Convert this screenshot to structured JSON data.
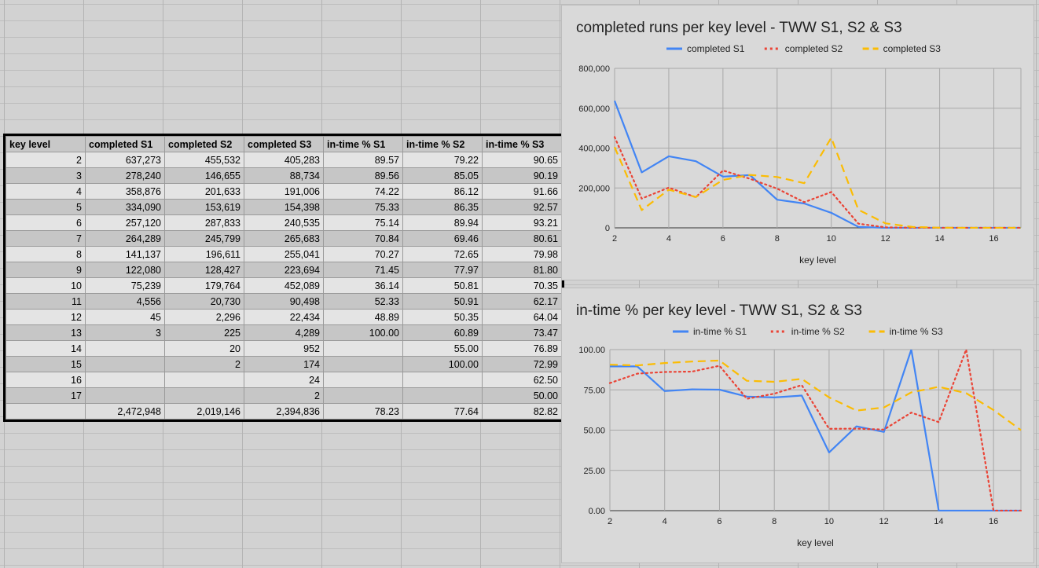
{
  "table": {
    "headers": [
      "key level",
      "completed S1",
      "completed S2",
      "completed S3",
      "in-time % S1",
      "in-time % S2",
      "in-time % S3"
    ],
    "rows": [
      [
        "2",
        "637,273",
        "455,532",
        "405,283",
        "89.57",
        "79.22",
        "90.65"
      ],
      [
        "3",
        "278,240",
        "146,655",
        "88,734",
        "89.56",
        "85.05",
        "90.19"
      ],
      [
        "4",
        "358,876",
        "201,633",
        "191,006",
        "74.22",
        "86.12",
        "91.66"
      ],
      [
        "5",
        "334,090",
        "153,619",
        "154,398",
        "75.33",
        "86.35",
        "92.57"
      ],
      [
        "6",
        "257,120",
        "287,833",
        "240,535",
        "75.14",
        "89.94",
        "93.21"
      ],
      [
        "7",
        "264,289",
        "245,799",
        "265,683",
        "70.84",
        "69.46",
        "80.61"
      ],
      [
        "8",
        "141,137",
        "196,611",
        "255,041",
        "70.27",
        "72.65",
        "79.98"
      ],
      [
        "9",
        "122,080",
        "128,427",
        "223,694",
        "71.45",
        "77.97",
        "81.80"
      ],
      [
        "10",
        "75,239",
        "179,764",
        "452,089",
        "36.14",
        "50.81",
        "70.35"
      ],
      [
        "11",
        "4,556",
        "20,730",
        "90,498",
        "52.33",
        "50.91",
        "62.17"
      ],
      [
        "12",
        "45",
        "2,296",
        "22,434",
        "48.89",
        "50.35",
        "64.04"
      ],
      [
        "13",
        "3",
        "225",
        "4,289",
        "100.00",
        "60.89",
        "73.47"
      ],
      [
        "14",
        "",
        "20",
        "952",
        "",
        "55.00",
        "76.89"
      ],
      [
        "15",
        "",
        "2",
        "174",
        "",
        "100.00",
        "72.99"
      ],
      [
        "16",
        "",
        "",
        "24",
        "",
        "",
        "62.50"
      ],
      [
        "17",
        "",
        "",
        "2",
        "",
        "",
        "50.00"
      ]
    ],
    "totals": [
      "",
      "2,472,948",
      "2,019,146",
      "2,394,836",
      "78.23",
      "77.64",
      "82.82"
    ]
  },
  "chart_data": [
    {
      "type": "line",
      "title": "completed runs per key level - TWW S1, S2 & S3",
      "xlabel": "key level",
      "ylabel": "",
      "x": [
        2,
        3,
        4,
        5,
        6,
        7,
        8,
        9,
        10,
        11,
        12,
        13,
        14,
        15,
        16,
        17
      ],
      "xlim": [
        2,
        17
      ],
      "ylim": [
        0,
        800000
      ],
      "xticks": [
        2,
        4,
        6,
        8,
        10,
        12,
        14,
        16
      ],
      "yticks": [
        0,
        200000,
        400000,
        600000,
        800000
      ],
      "ytick_labels": [
        "0",
        "200,000",
        "400,000",
        "600,000",
        "800,000"
      ],
      "grid": true,
      "legend_position": "top",
      "series": [
        {
          "name": "completed S1",
          "color": "#4285f4",
          "dash": "solid",
          "values": [
            637273,
            278240,
            358876,
            334090,
            257120,
            264289,
            141137,
            122080,
            75239,
            4556,
            45,
            3,
            0,
            0,
            0,
            0
          ]
        },
        {
          "name": "completed S2",
          "color": "#ea4335",
          "dash": "dotted",
          "values": [
            455532,
            146655,
            201633,
            153619,
            287833,
            245799,
            196611,
            128427,
            179764,
            20730,
            2296,
            225,
            20,
            2,
            0,
            0
          ]
        },
        {
          "name": "completed S3",
          "color": "#fbbc04",
          "dash": "dashed",
          "values": [
            405283,
            88734,
            191006,
            154398,
            240535,
            265683,
            255041,
            223694,
            452089,
            90498,
            22434,
            4289,
            952,
            174,
            24,
            2
          ]
        }
      ]
    },
    {
      "type": "line",
      "title": "in-time % per key level - TWW S1, S2 & S3",
      "xlabel": "key level",
      "ylabel": "",
      "x": [
        2,
        3,
        4,
        5,
        6,
        7,
        8,
        9,
        10,
        11,
        12,
        13,
        14,
        15,
        16,
        17
      ],
      "xlim": [
        2,
        17
      ],
      "ylim": [
        0,
        100
      ],
      "xticks": [
        2,
        4,
        6,
        8,
        10,
        12,
        14,
        16
      ],
      "yticks": [
        0,
        25,
        50,
        75,
        100
      ],
      "ytick_labels": [
        "0.00",
        "25.00",
        "50.00",
        "75.00",
        "100.00"
      ],
      "grid": true,
      "legend_position": "top",
      "series": [
        {
          "name": "in-time % S1",
          "color": "#4285f4",
          "dash": "solid",
          "values": [
            89.57,
            89.56,
            74.22,
            75.33,
            75.14,
            70.84,
            70.27,
            71.45,
            36.14,
            52.33,
            48.89,
            100,
            0,
            0,
            0,
            0
          ]
        },
        {
          "name": "in-time % S2",
          "color": "#ea4335",
          "dash": "dotted",
          "values": [
            79.22,
            85.05,
            86.12,
            86.35,
            89.94,
            69.46,
            72.65,
            77.97,
            50.81,
            50.91,
            50.35,
            60.89,
            55.0,
            100,
            0,
            0
          ]
        },
        {
          "name": "in-time % S3",
          "color": "#fbbc04",
          "dash": "dashed",
          "values": [
            90.65,
            90.19,
            91.66,
            92.57,
            93.21,
            80.61,
            79.98,
            81.8,
            70.35,
            62.17,
            64.04,
            73.47,
            76.89,
            72.99,
            62.5,
            50.0
          ]
        }
      ]
    }
  ]
}
